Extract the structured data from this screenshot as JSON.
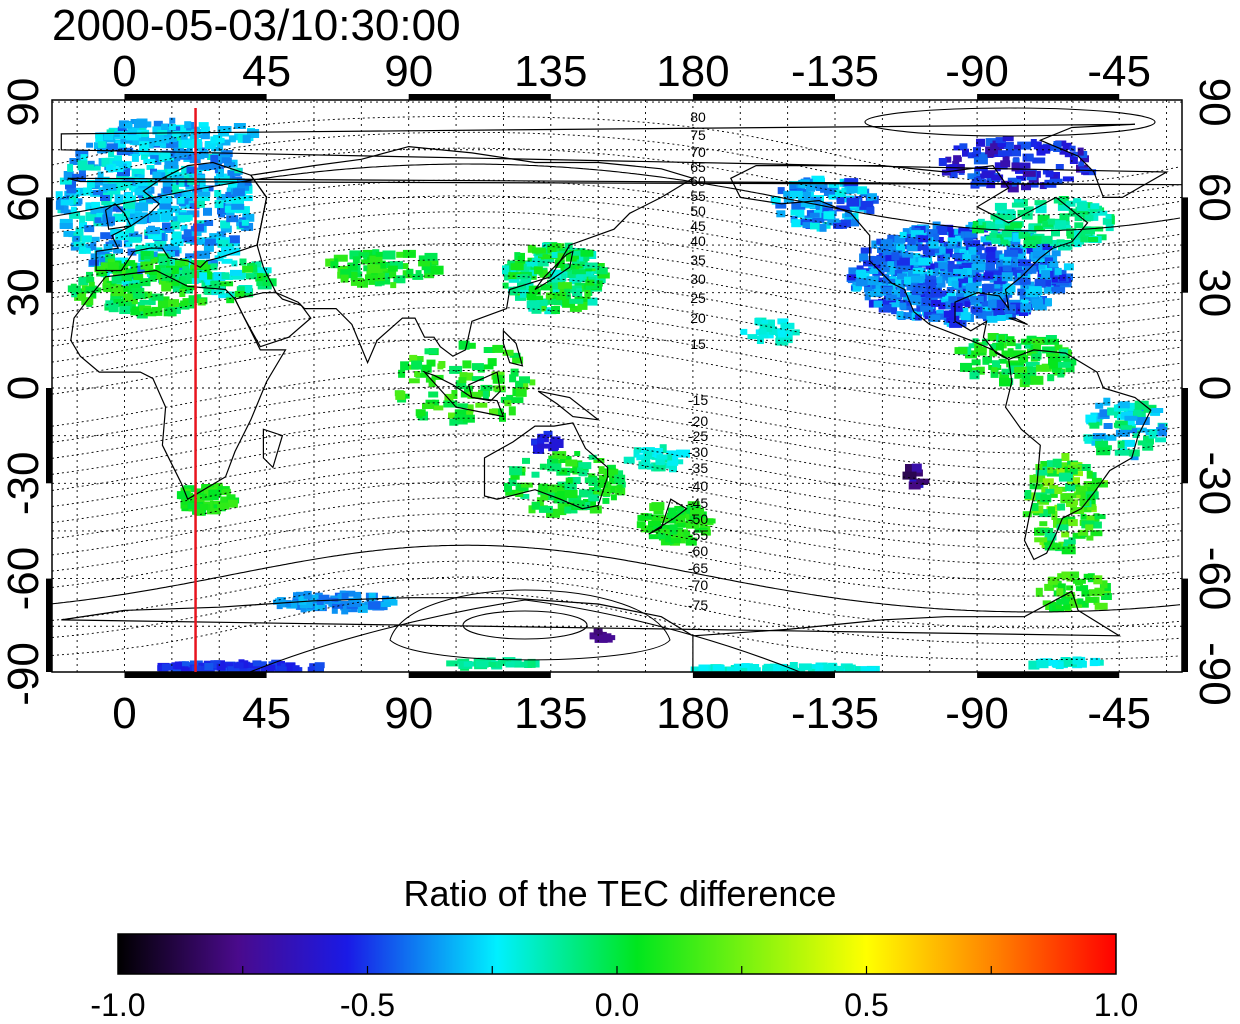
{
  "title": "2000-05-03/10:30:00",
  "map": {
    "x_ticks": [
      "0",
      "45",
      "90",
      "135",
      "180",
      "-135",
      "-90",
      "-45"
    ],
    "y_ticks": [
      "90",
      "60",
      "30",
      "0",
      "-30",
      "-60",
      "-90"
    ],
    "contour_labels_north": [
      "80",
      "75",
      "70",
      "65",
      "60",
      "55",
      "50",
      "45",
      "40",
      "35",
      "30",
      "25",
      "20",
      "15"
    ],
    "contour_labels_south": [
      "-15",
      "-20",
      "-25",
      "-30",
      "-35",
      "-40",
      "-45",
      "-50",
      "-55",
      "-60",
      "-65",
      "-70",
      "-75"
    ],
    "red_line_longitude": 22.5,
    "colors": {
      "red_line": "#e8141e",
      "frame": "#000000"
    }
  },
  "colorbar": {
    "title": "Ratio of the TEC difference",
    "ticks": [
      "-1.0",
      "-0.5",
      "0.0",
      "0.5",
      "1.0"
    ],
    "range": [
      -1.0,
      1.0
    ],
    "colormap": [
      "#000000",
      "#4a0a8c",
      "#1a1ae6",
      "#00f0ff",
      "#00e61e",
      "#ffff00",
      "#ff8000",
      "#ff0000"
    ]
  }
}
